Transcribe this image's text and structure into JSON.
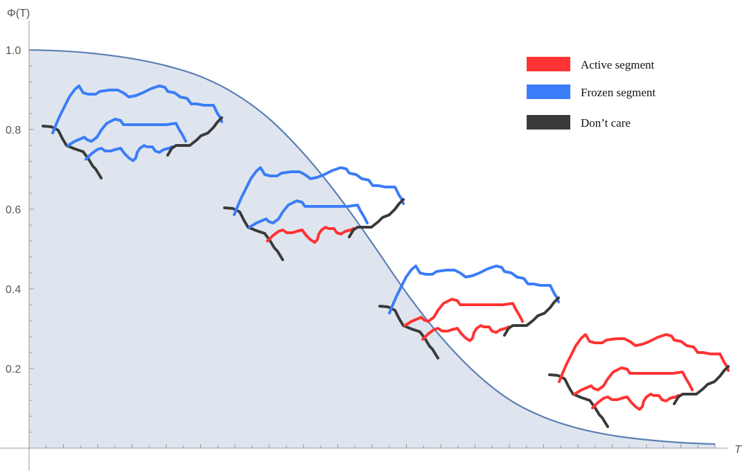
{
  "chart_data": {
    "type": "area",
    "title": "",
    "xlabel": "T",
    "ylabel": "Φ(T)",
    "x_range": [
      0,
      1
    ],
    "ylim": [
      0,
      1.0
    ],
    "y_ticks": [
      "0.2",
      "0.4",
      "0.6",
      "0.8",
      "1.0"
    ],
    "series": [
      {
        "points": [
          [
            0.0,
            1.0
          ],
          [
            0.05,
            0.997
          ],
          [
            0.1,
            0.99
          ],
          [
            0.15,
            0.978
          ],
          [
            0.2,
            0.96
          ],
          [
            0.25,
            0.933
          ],
          [
            0.3,
            0.89
          ],
          [
            0.35,
            0.827
          ],
          [
            0.4,
            0.74
          ],
          [
            0.45,
            0.635
          ],
          [
            0.5,
            0.515
          ],
          [
            0.55,
            0.39
          ],
          [
            0.6,
            0.28
          ],
          [
            0.65,
            0.19
          ],
          [
            0.7,
            0.122
          ],
          [
            0.75,
            0.078
          ],
          [
            0.8,
            0.05
          ],
          [
            0.85,
            0.032
          ],
          [
            0.9,
            0.021
          ],
          [
            0.95,
            0.014
          ],
          [
            1.0,
            0.01
          ]
        ]
      }
    ],
    "legend": {
      "placement": "top-right",
      "entries": [
        {
          "label": "Active segment",
          "color": "#ff3333"
        },
        {
          "label": "Frozen segment",
          "color": "#3b7df8"
        },
        {
          "label": "Don’t care",
          "color": "#3a3a3a"
        }
      ]
    },
    "colors": {
      "curve": "#5b7fb3",
      "fill": "#dfe5ef",
      "axis": "#999999"
    },
    "insets": [
      {
        "name": "inset-1",
        "frozen_paths": 3,
        "active_paths": 0
      },
      {
        "name": "inset-2",
        "frozen_paths": 2,
        "active_paths": 1
      },
      {
        "name": "inset-3",
        "frozen_paths": 1,
        "active_paths": 2
      },
      {
        "name": "inset-4",
        "frozen_paths": 0,
        "active_paths": 3
      }
    ]
  }
}
